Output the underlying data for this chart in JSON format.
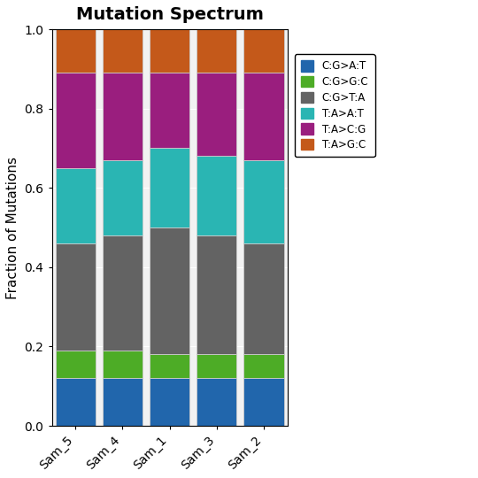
{
  "title": "Mutation Spectrum",
  "ylabel": "Fraction of Mutations",
  "categories": [
    "Sam_5",
    "Sam_4",
    "Sam_1",
    "Sam_3",
    "Sam_2"
  ],
  "segments": {
    "C:G>A:T": [
      0.12,
      0.12,
      0.12,
      0.12,
      0.12
    ],
    "C:G>G:C": [
      0.07,
      0.07,
      0.06,
      0.06,
      0.06
    ],
    "C:G>T:A": [
      0.27,
      0.29,
      0.32,
      0.3,
      0.28
    ],
    "T:A>A:T": [
      0.19,
      0.19,
      0.2,
      0.2,
      0.21
    ],
    "T:A>C:G": [
      0.24,
      0.22,
      0.19,
      0.21,
      0.22
    ],
    "T:A>G:C": [
      0.11,
      0.11,
      0.11,
      0.11,
      0.11
    ]
  },
  "colors": {
    "C:G>A:T": "#2166ac",
    "C:G>G:C": "#4dac26",
    "C:G>T:A": "#636363",
    "T:A>A:T": "#2ab5b3",
    "T:A>C:G": "#9a1e7e",
    "T:A>G:C": "#c4591a"
  },
  "ylim": [
    0.0,
    1.0
  ],
  "yticks": [
    0.0,
    0.2,
    0.4,
    0.6,
    0.8,
    1.0
  ],
  "bg_color": "#f2f2f2",
  "figsize": [
    5.4,
    5.4
  ],
  "dpi": 100
}
